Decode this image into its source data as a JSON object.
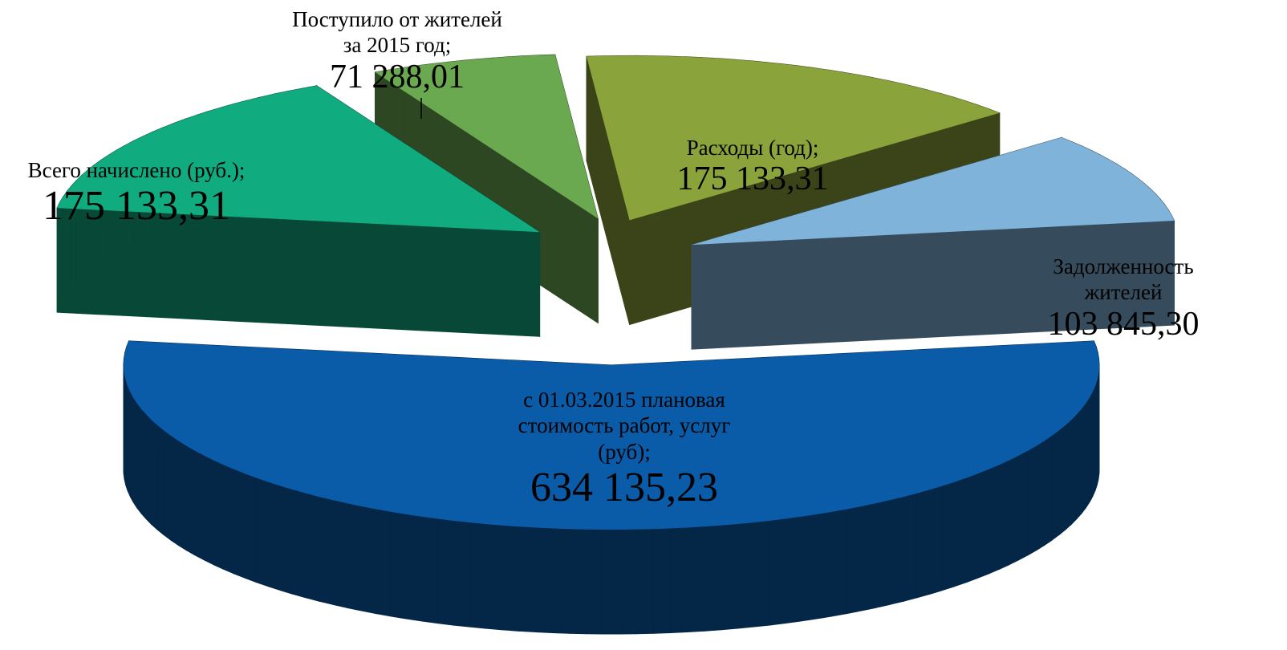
{
  "chart_data": {
    "type": "pie3d",
    "categories": [
      "Всего начислено (руб.);",
      "Поступило от жителей\nза 2015 год;",
      "Расходы (год);",
      "Задолженность жителей",
      "с 01.03.2015  плановая\nстоимость работ, услуг\n(руб);"
    ],
    "values": [
      175133.31,
      71288.01,
      175133.31,
      103845.3,
      634135.23
    ],
    "value_labels": [
      "175 133,31",
      "71 288,01",
      "175 133,31",
      "103 845,30",
      "634 135,23"
    ],
    "colors": [
      "#10ac80",
      "#6aa950",
      "#8aa33a",
      "#80b3d9",
      "#0a5ba8"
    ]
  }
}
